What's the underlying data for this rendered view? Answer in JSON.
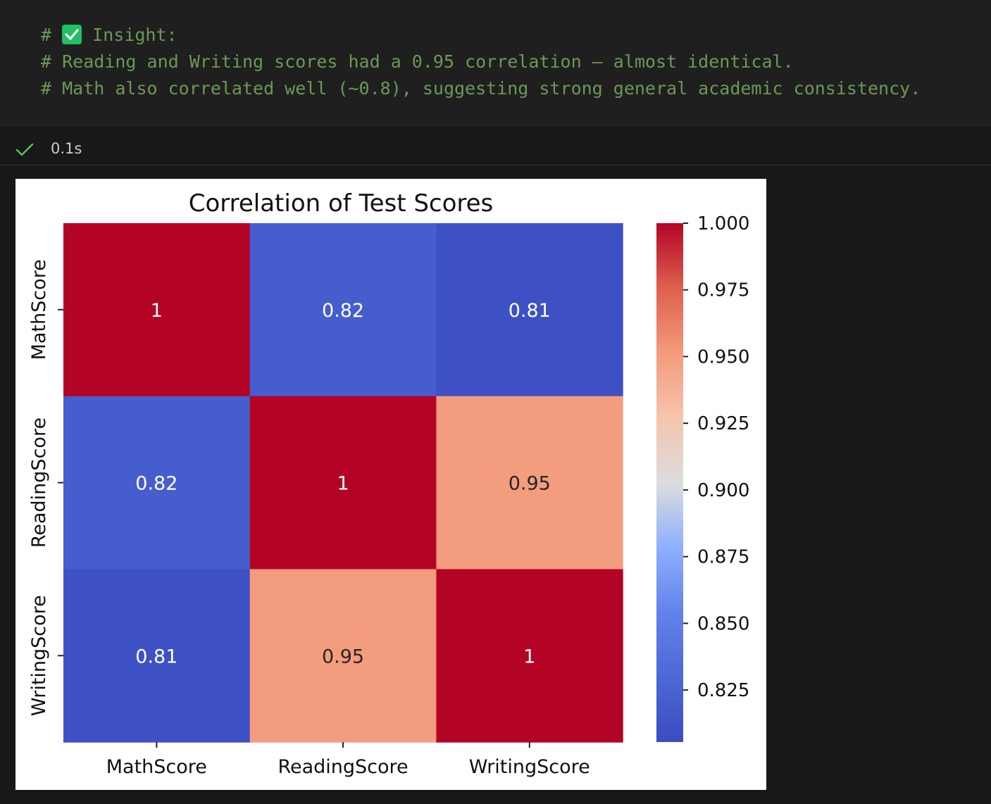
{
  "code_cell": {
    "line1_prefix": "# ",
    "line1_text": " Insight:",
    "line2": "# Reading and Writing scores had a 0.95 correlation — almost identical.",
    "line3": "# Math also correlated well (~0.8), suggesting strong general academic consistency."
  },
  "status": {
    "icon": "check-icon",
    "time": "0.1s"
  },
  "colors": {
    "comment_green": "#6a9955",
    "emoji_green": "#20c063",
    "status_check": "#4ec94e"
  },
  "chart_data": {
    "type": "heatmap",
    "title": "Correlation of Test Scores",
    "x_labels": [
      "MathScore",
      "ReadingScore",
      "WritingScore"
    ],
    "y_labels": [
      "MathScore",
      "ReadingScore",
      "WritingScore"
    ],
    "values": [
      [
        1,
        0.82,
        0.81
      ],
      [
        0.82,
        1,
        0.95
      ],
      [
        0.81,
        0.95,
        1
      ]
    ],
    "annotations": [
      [
        "1",
        "0.82",
        "0.81"
      ],
      [
        "0.82",
        "1",
        "0.95"
      ],
      [
        "0.81",
        "0.95",
        "1"
      ]
    ],
    "colormap": "coolwarm",
    "colorbar": {
      "vmin": 0.8055,
      "vmax": 1.0,
      "ticks": [
        1.0,
        0.975,
        0.95,
        0.925,
        0.9,
        0.875,
        0.85,
        0.825
      ],
      "tick_labels": [
        "1.000",
        "0.975",
        "0.950",
        "0.925",
        "0.900",
        "0.875",
        "0.850",
        "0.825"
      ]
    }
  }
}
